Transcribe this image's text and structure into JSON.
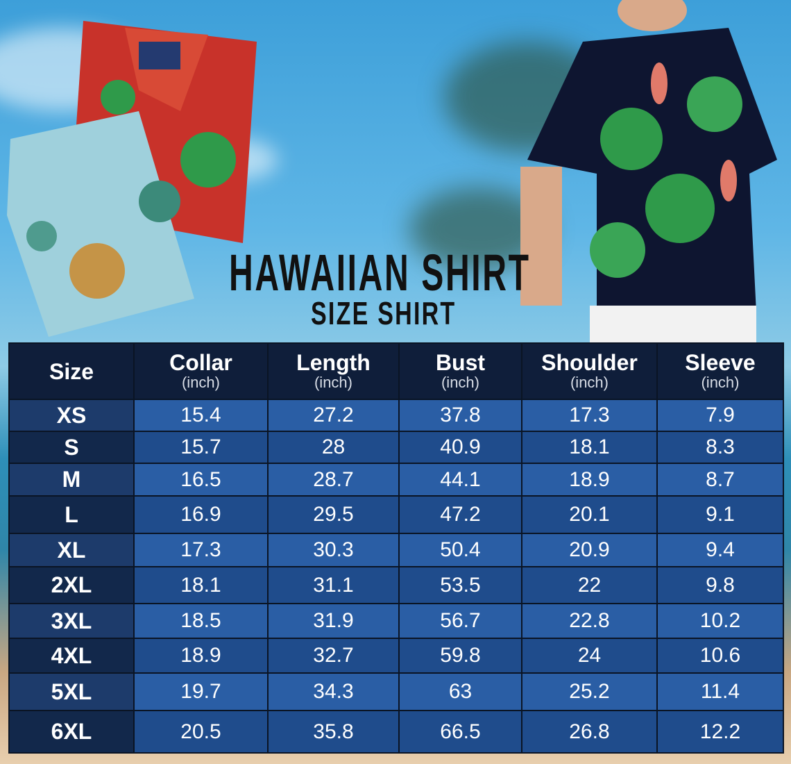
{
  "title": "HAWAIIAN SHIRT",
  "subtitle": "SIZE SHIRT",
  "table": {
    "headers": [
      {
        "label": "Size",
        "unit": ""
      },
      {
        "label": "Collar",
        "unit": "(inch)"
      },
      {
        "label": "Length",
        "unit": "(inch)"
      },
      {
        "label": "Bust",
        "unit": "(inch)"
      },
      {
        "label": "Shoulder",
        "unit": "(inch)"
      },
      {
        "label": "Sleeve",
        "unit": "(inch)"
      }
    ],
    "rows": [
      [
        "XS",
        "15.4",
        "27.2",
        "37.8",
        "17.3",
        "7.9"
      ],
      [
        "S",
        "15.7",
        "28",
        "40.9",
        "18.1",
        "8.3"
      ],
      [
        "M",
        "16.5",
        "28.7",
        "44.1",
        "18.9",
        "8.7"
      ],
      [
        "L",
        "16.9",
        "29.5",
        "47.2",
        "20.1",
        "9.1"
      ],
      [
        "XL",
        "17.3",
        "30.3",
        "50.4",
        "20.9",
        "9.4"
      ],
      [
        "2XL",
        "18.1",
        "31.1",
        "53.5",
        "22",
        "9.8"
      ],
      [
        "3XL",
        "18.5",
        "31.9",
        "56.7",
        "22.8",
        "10.2"
      ],
      [
        "4XL",
        "18.9",
        "32.7",
        "59.8",
        "24",
        "10.6"
      ],
      [
        "5XL",
        "19.7",
        "34.3",
        "63",
        "25.2",
        "11.4"
      ],
      [
        "6XL",
        "20.5",
        "35.8",
        "66.5",
        "26.8",
        "12.2"
      ]
    ]
  },
  "colors": {
    "header": "#0f1e3a",
    "cell_light": "#2a5ea5",
    "cell_dark": "#1f4c8c",
    "title": "#111111"
  }
}
